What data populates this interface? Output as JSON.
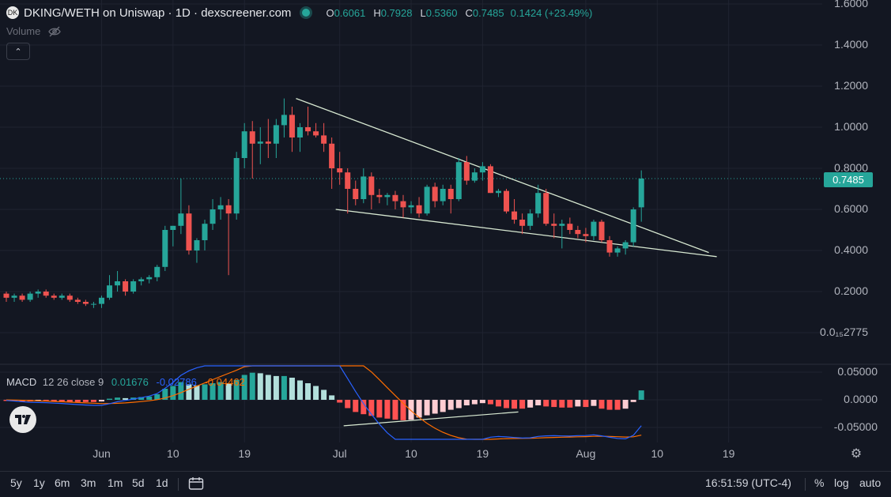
{
  "header": {
    "logo_text": "DK",
    "title": "DKING/WETH on Uniswap · 1D · dexscreener.com",
    "open_label": "O",
    "open": "0.6061",
    "high_label": "H",
    "high": "0.7928",
    "low_label": "L",
    "low": "0.5360",
    "close_label": "C",
    "close": "0.7485",
    "change": "0.1424 (+23.49%)"
  },
  "volume_label": "Volume",
  "current_price": "0.7485",
  "macd_legend": {
    "name": "MACD",
    "params": "12 26 close 9",
    "hist": "0.01676",
    "macd": "-0.02786",
    "signal": "-0.04462"
  },
  "price_axis": [
    {
      "label": "1.6000",
      "v": 1.6
    },
    {
      "label": "1.4000",
      "v": 1.4
    },
    {
      "label": "1.2000",
      "v": 1.2
    },
    {
      "label": "1.0000",
      "v": 1.0
    },
    {
      "label": "0.8000",
      "v": 0.8
    },
    {
      "label": "0.6000",
      "v": 0.6
    },
    {
      "label": "0.4000",
      "v": 0.4
    },
    {
      "label": "0.2000",
      "v": 0.2
    },
    {
      "label": "0.0₁₅2775",
      "v": 0.0
    }
  ],
  "macd_axis": [
    {
      "label": "0.05000",
      "v": 0.05
    },
    {
      "label": "0.0000",
      "v": 0.0
    },
    {
      "label": "-0.05000",
      "v": -0.05
    }
  ],
  "time_axis": [
    {
      "label": "Jun",
      "i": 12
    },
    {
      "label": "10",
      "i": 21
    },
    {
      "label": "19",
      "i": 30
    },
    {
      "label": "Jul",
      "i": 42
    },
    {
      "label": "10",
      "i": 51
    },
    {
      "label": "19",
      "i": 60
    },
    {
      "label": "Aug",
      "i": 73
    },
    {
      "label": "10",
      "i": 82
    },
    {
      "label": "19",
      "i": 91
    }
  ],
  "bottom_bar": {
    "timeframes": [
      "5y",
      "1y",
      "6m",
      "3m",
      "1m",
      "5d",
      "1d"
    ],
    "time": "16:51:59 (UTC-4)",
    "percent": "%",
    "log": "log",
    "auto": "auto"
  },
  "colors": {
    "up": "#26a69a",
    "down": "#ef5350",
    "bg": "#131722",
    "macd_line": "#2962ff",
    "signal_line": "#ff6d00",
    "hist_up_strong": "#26a69a",
    "hist_up_weak": "#b2dfdb",
    "hist_down_strong": "#ff5252",
    "hist_down_weak": "#ffcdd2",
    "trendline": "#d9ead3"
  },
  "chart_data": {
    "type": "candlestick",
    "pair": "DKING/WETH",
    "interval": "1D",
    "candles": [
      [
        0.19,
        0.2,
        0.15,
        0.17
      ],
      [
        0.17,
        0.19,
        0.15,
        0.18
      ],
      [
        0.18,
        0.19,
        0.15,
        0.16
      ],
      [
        0.16,
        0.2,
        0.15,
        0.19
      ],
      [
        0.19,
        0.21,
        0.17,
        0.2
      ],
      [
        0.2,
        0.21,
        0.17,
        0.18
      ],
      [
        0.18,
        0.19,
        0.16,
        0.17
      ],
      [
        0.17,
        0.19,
        0.16,
        0.18
      ],
      [
        0.18,
        0.19,
        0.15,
        0.16
      ],
      [
        0.16,
        0.17,
        0.14,
        0.15
      ],
      [
        0.15,
        0.16,
        0.13,
        0.14
      ],
      [
        0.14,
        0.15,
        0.12,
        0.14
      ],
      [
        0.14,
        0.18,
        0.12,
        0.17
      ],
      [
        0.17,
        0.28,
        0.16,
        0.23
      ],
      [
        0.23,
        0.3,
        0.2,
        0.25
      ],
      [
        0.25,
        0.26,
        0.18,
        0.2
      ],
      [
        0.2,
        0.26,
        0.19,
        0.25
      ],
      [
        0.25,
        0.27,
        0.23,
        0.26
      ],
      [
        0.26,
        0.28,
        0.24,
        0.27
      ],
      [
        0.27,
        0.33,
        0.25,
        0.32
      ],
      [
        0.32,
        0.52,
        0.3,
        0.5
      ],
      [
        0.5,
        0.52,
        0.42,
        0.52
      ],
      [
        0.52,
        0.75,
        0.48,
        0.58
      ],
      [
        0.58,
        0.62,
        0.38,
        0.4
      ],
      [
        0.4,
        0.46,
        0.34,
        0.45
      ],
      [
        0.45,
        0.55,
        0.4,
        0.53
      ],
      [
        0.53,
        0.65,
        0.5,
        0.6
      ],
      [
        0.6,
        0.66,
        0.55,
        0.62
      ],
      [
        0.62,
        0.65,
        0.28,
        0.58
      ],
      [
        0.58,
        0.88,
        0.55,
        0.85
      ],
      [
        0.85,
        1.02,
        0.8,
        0.98
      ],
      [
        0.98,
        1.03,
        0.75,
        0.92
      ],
      [
        0.92,
        1.0,
        0.82,
        0.93
      ],
      [
        0.93,
        1.04,
        0.85,
        0.92
      ],
      [
        0.92,
        1.04,
        0.85,
        1.01
      ],
      [
        1.01,
        1.14,
        0.95,
        1.06
      ],
      [
        1.06,
        1.1,
        0.88,
        0.95
      ],
      [
        0.95,
        1.02,
        0.88,
        1.0
      ],
      [
        1.0,
        1.1,
        0.96,
        0.98
      ],
      [
        0.98,
        1.02,
        0.95,
        0.96
      ],
      [
        0.96,
        1.02,
        0.88,
        0.92
      ],
      [
        0.92,
        0.95,
        0.7,
        0.8
      ],
      [
        0.8,
        0.88,
        0.72,
        0.78
      ],
      [
        0.78,
        0.8,
        0.58,
        0.7
      ],
      [
        0.7,
        0.74,
        0.62,
        0.65
      ],
      [
        0.65,
        0.8,
        0.63,
        0.76
      ],
      [
        0.76,
        0.78,
        0.6,
        0.67
      ],
      [
        0.67,
        0.7,
        0.63,
        0.66
      ],
      [
        0.66,
        0.68,
        0.62,
        0.67
      ],
      [
        0.67,
        0.69,
        0.6,
        0.64
      ],
      [
        0.64,
        0.67,
        0.56,
        0.61
      ],
      [
        0.61,
        0.64,
        0.58,
        0.62
      ],
      [
        0.62,
        0.66,
        0.56,
        0.58
      ],
      [
        0.58,
        0.72,
        0.57,
        0.71
      ],
      [
        0.71,
        0.73,
        0.61,
        0.64
      ],
      [
        0.64,
        0.72,
        0.62,
        0.7
      ],
      [
        0.7,
        0.72,
        0.58,
        0.65
      ],
      [
        0.65,
        0.85,
        0.64,
        0.83
      ],
      [
        0.83,
        0.86,
        0.72,
        0.74
      ],
      [
        0.74,
        0.8,
        0.73,
        0.78
      ],
      [
        0.78,
        0.83,
        0.74,
        0.81
      ],
      [
        0.81,
        0.82,
        0.68,
        0.68
      ],
      [
        0.68,
        0.7,
        0.66,
        0.69
      ],
      [
        0.69,
        0.7,
        0.58,
        0.59
      ],
      [
        0.59,
        0.65,
        0.53,
        0.55
      ],
      [
        0.55,
        0.58,
        0.48,
        0.52
      ],
      [
        0.52,
        0.6,
        0.5,
        0.58
      ],
      [
        0.58,
        0.72,
        0.56,
        0.68
      ],
      [
        0.68,
        0.7,
        0.52,
        0.53
      ],
      [
        0.53,
        0.58,
        0.46,
        0.52
      ],
      [
        0.52,
        0.55,
        0.41,
        0.53
      ],
      [
        0.53,
        0.56,
        0.48,
        0.5
      ],
      [
        0.5,
        0.52,
        0.46,
        0.48
      ],
      [
        0.48,
        0.51,
        0.44,
        0.47
      ],
      [
        0.47,
        0.55,
        0.45,
        0.54
      ],
      [
        0.54,
        0.55,
        0.44,
        0.45
      ],
      [
        0.45,
        0.47,
        0.37,
        0.39
      ],
      [
        0.39,
        0.42,
        0.37,
        0.41
      ],
      [
        0.41,
        0.45,
        0.38,
        0.44
      ],
      [
        0.44,
        0.61,
        0.42,
        0.6
      ],
      [
        0.61,
        0.79,
        0.54,
        0.75
      ]
    ],
    "macd_hist": [
      -0.002,
      -0.002,
      -0.003,
      -0.003,
      -0.002,
      -0.002,
      -0.003,
      -0.003,
      -0.004,
      -0.004,
      -0.004,
      -0.004,
      -0.003,
      0.002,
      0.004,
      0.003,
      0.004,
      0.005,
      0.006,
      0.01,
      0.02,
      0.025,
      0.032,
      0.028,
      0.026,
      0.028,
      0.03,
      0.032,
      0.03,
      0.036,
      0.045,
      0.049,
      0.048,
      0.045,
      0.043,
      0.043,
      0.04,
      0.035,
      0.03,
      0.025,
      0.018,
      0.008,
      -0.005,
      -0.015,
      -0.022,
      -0.026,
      -0.029,
      -0.032,
      -0.034,
      -0.036,
      -0.037,
      -0.036,
      -0.032,
      -0.028,
      -0.025,
      -0.022,
      -0.018,
      -0.015,
      -0.01,
      -0.008,
      -0.006,
      -0.008,
      -0.012,
      -0.015,
      -0.016,
      -0.016,
      -0.014,
      -0.01,
      -0.012,
      -0.013,
      -0.014,
      -0.014,
      -0.012,
      -0.013,
      -0.011,
      -0.016,
      -0.018,
      -0.018,
      -0.016,
      -0.004,
      0.017
    ]
  }
}
